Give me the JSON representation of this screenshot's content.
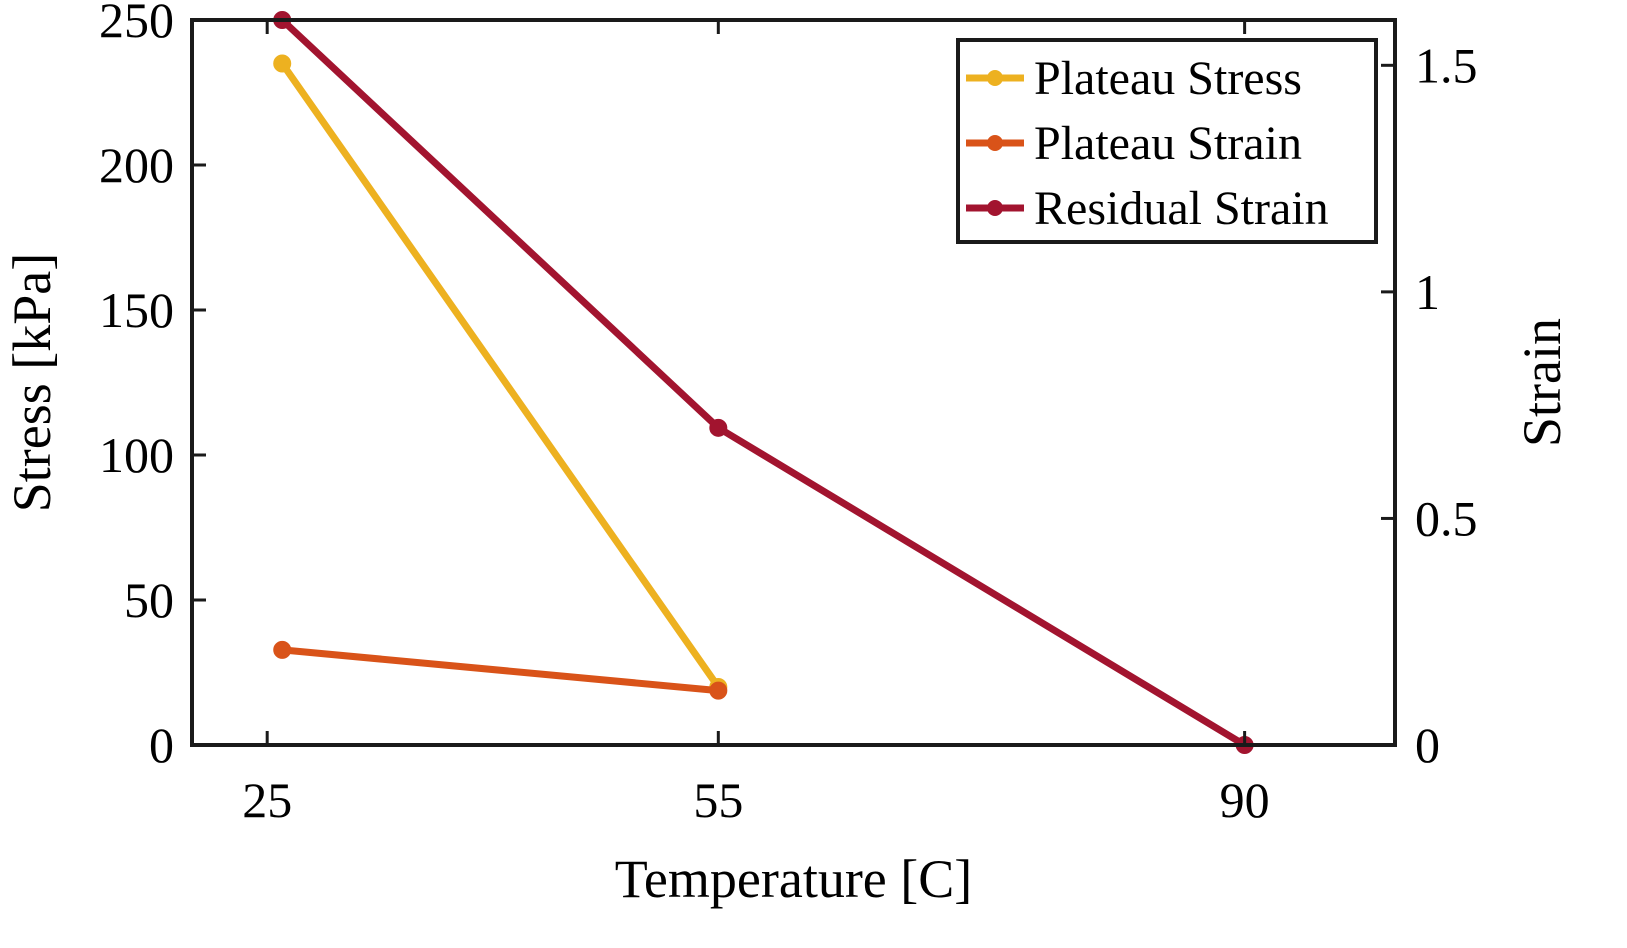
{
  "chart_data": {
    "type": "line",
    "title": "",
    "xlabel": "Temperature [C]",
    "ylabel_left": "Stress [kPa]",
    "ylabel_right": "Strain",
    "xlim": [
      20,
      100
    ],
    "ylim_left": [
      0,
      250
    ],
    "ylim_right": [
      0,
      1.6
    ],
    "x_ticks": [
      25,
      55,
      90
    ],
    "y_ticks_left": [
      0,
      50,
      100,
      150,
      200,
      250
    ],
    "y_ticks_right": [
      0,
      0.5,
      1,
      1.5
    ],
    "y_tick_labels_right": [
      "0",
      "0.5",
      "1",
      "1.5"
    ],
    "grid": false,
    "legend_position": "top-right",
    "series": [
      {
        "name": "Plateau Stress",
        "axis": "left",
        "color": "#EDB120",
        "x": [
          26,
          55
        ],
        "y": [
          235,
          20
        ]
      },
      {
        "name": "Plateau Strain",
        "axis": "right",
        "color": "#D95319",
        "x": [
          26,
          55
        ],
        "y": [
          0.21,
          0.12
        ]
      },
      {
        "name": "Residual Strain",
        "axis": "right",
        "color": "#A2142F",
        "x": [
          26,
          55,
          90
        ],
        "y": [
          1.6,
          0.7,
          0.0
        ]
      }
    ]
  }
}
